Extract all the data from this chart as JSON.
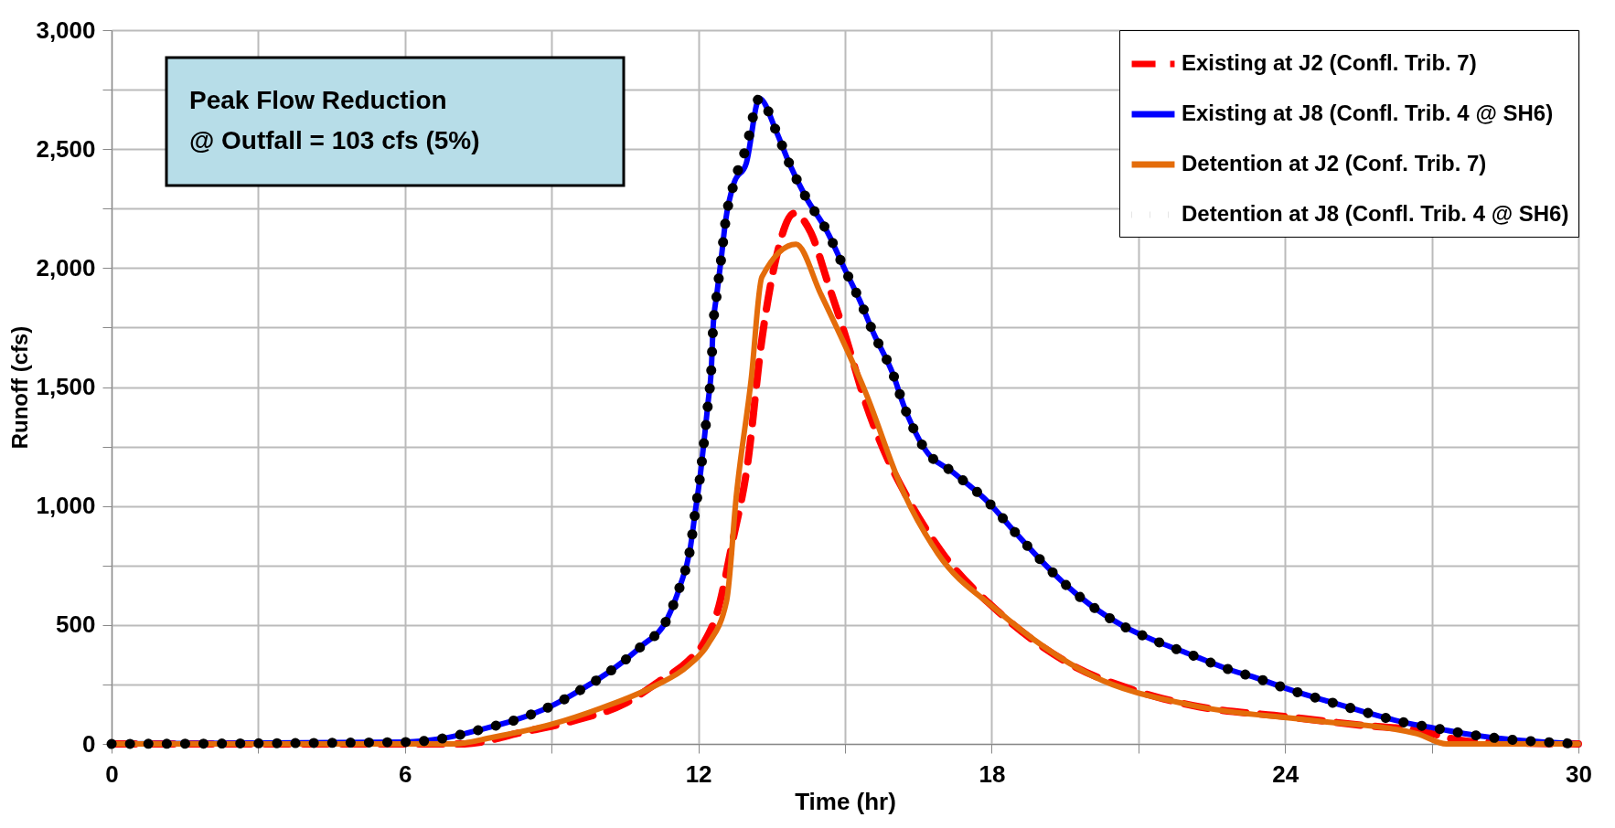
{
  "chart_data": {
    "type": "line",
    "xlabel": "Time (hr)",
    "ylabel": "Runoff (cfs)",
    "annotations": [
      "Peak Flow Reduction\n@ Outfall = 103 cfs (5%)"
    ],
    "xlim": [
      0,
      30
    ],
    "ylim": [
      0,
      3000
    ],
    "xticks": [
      0,
      {
        "value": 3,
        "label": null
      },
      6,
      {
        "value": 9,
        "label": null
      },
      12,
      {
        "value": 15,
        "label": null
      },
      18,
      {
        "value": 21,
        "label": null
      },
      24,
      {
        "value": 27,
        "label": null
      },
      30
    ],
    "yticks": [
      0,
      {
        "value": 250,
        "label": null
      },
      {
        "value": 500,
        "label": "500"
      },
      {
        "value": 750,
        "label": null
      },
      {
        "value": 1000,
        "label": "1,000"
      },
      {
        "value": 1250,
        "label": null
      },
      {
        "value": 1500,
        "label": "1,500"
      },
      {
        "value": 1750,
        "label": null
      },
      {
        "value": 2000,
        "label": "2,000"
      },
      {
        "value": 2250,
        "label": null
      },
      {
        "value": 2500,
        "label": "2,500"
      },
      {
        "value": 2750,
        "label": null
      },
      {
        "value": 3000,
        "label": "3,000"
      }
    ],
    "grid": true,
    "legend": "top right",
    "series": [
      {
        "name": "Existing at J2 (Confl. Trib. 7)",
        "color": "#ff0000",
        "line_style": "dashed",
        "x": [
          0,
          7.2,
          8.4,
          9.5,
          10.5,
          11.2,
          11.8,
          12.1,
          12.4,
          12.7,
          13.0,
          13.3,
          13.6,
          13.96,
          14.3,
          14.65,
          15.0,
          15.43,
          15.88,
          16.22,
          17.0,
          18.14,
          19.6,
          21.0,
          22.1,
          24.1,
          25.5,
          26.7,
          27.8,
          30
        ],
        "values": [
          0,
          0,
          49,
          100,
          170,
          263,
          350,
          421,
          563,
          850,
          1166,
          1700,
          2050,
          2230,
          2150,
          1938,
          1720,
          1428,
          1194,
          1056,
          800,
          555,
          336,
          220,
          162,
          113,
          80,
          57,
          10,
          0
        ]
      },
      {
        "name": "Existing at J8 (Confl. Trib. 4 @ SH6)",
        "color": "#0000ff",
        "line_style": "solid",
        "x": [
          0,
          6.0,
          6.77,
          7.52,
          8.25,
          9.0,
          9.6,
          10.26,
          10.83,
          11.36,
          11.63,
          11.83,
          11.94,
          12.03,
          12.12,
          12.2,
          12.27,
          12.3,
          12.38,
          12.47,
          12.56,
          12.73,
          12.98,
          13.25,
          13.6,
          13.86,
          14.2,
          14.64,
          14.97,
          15.3,
          15.59,
          15.99,
          16.2,
          16.63,
          17.22,
          17.95,
          18.46,
          18.95,
          19.46,
          20.05,
          20.72,
          21.4,
          22.09,
          22.77,
          23.46,
          24.17,
          24.83,
          25.58,
          26.42,
          27.13,
          27.9,
          28.63,
          29.23,
          30
        ],
        "values": [
          0,
          8,
          23,
          59,
          100,
          160,
          228,
          315,
          410,
          524,
          666,
          816,
          980,
          1113,
          1277,
          1436,
          1591,
          1742,
          1892,
          2043,
          2202,
          2357,
          2440,
          2713,
          2572,
          2440,
          2298,
          2152,
          2006,
          1865,
          1724,
          1550,
          1423,
          1240,
          1140,
          1012,
          894,
          784,
          679,
          579,
          492,
          429,
          374,
          319,
          274,
          223,
          182,
          137,
          91,
          64,
          36,
          18,
          9,
          0
        ]
      },
      {
        "name": "Detention at J2 (Conf. Trib. 7)",
        "color": "#e46c0a",
        "line_style": "solid",
        "x": [
          0,
          7.0,
          7.8,
          8.97,
          10.0,
          11.1,
          11.8,
          12.2,
          12.58,
          12.78,
          13.08,
          13.3,
          14.0,
          14.5,
          15.43,
          16.2,
          16.9,
          18.08,
          20.05,
          22.1,
          24.5,
          26.7,
          27.3,
          30
        ],
        "values": [
          0,
          0,
          28,
          81,
          150,
          243,
          330,
          420,
          603,
          1048,
          1530,
          1962,
          2100,
          1893,
          1473,
          1056,
          800,
          567,
          287,
          162,
          100,
          43,
          0,
          0
        ]
      },
      {
        "name": "Detention at J8 (Confl. Trib. 4 @ SH6)",
        "color": "#000000",
        "line_style": "dotted",
        "x": [
          0,
          6.0,
          6.77,
          7.52,
          8.25,
          9.0,
          9.6,
          10.26,
          10.83,
          11.36,
          11.63,
          11.83,
          11.94,
          12.03,
          12.12,
          12.2,
          12.27,
          12.3,
          12.38,
          12.47,
          12.56,
          12.73,
          12.98,
          13.25,
          13.6,
          13.86,
          14.2,
          14.64,
          14.97,
          15.3,
          15.59,
          15.99,
          16.2,
          16.63,
          17.22,
          17.95,
          18.46,
          18.95,
          19.46,
          20.05,
          20.72,
          21.4,
          22.09,
          22.77,
          23.46,
          24.17,
          24.83,
          25.58,
          26.42,
          27.13,
          27.9,
          28.63,
          29.23,
          30
        ],
        "values": [
          0,
          8,
          23,
          59,
          100,
          160,
          228,
          315,
          410,
          524,
          666,
          816,
          980,
          1113,
          1277,
          1436,
          1591,
          1742,
          1892,
          2043,
          2202,
          2357,
          2508,
          2713,
          2572,
          2440,
          2298,
          2152,
          2006,
          1865,
          1724,
          1550,
          1423,
          1240,
          1140,
          1012,
          894,
          784,
          679,
          579,
          492,
          429,
          374,
          319,
          274,
          223,
          182,
          137,
          91,
          64,
          36,
          18,
          9,
          0
        ]
      }
    ]
  }
}
